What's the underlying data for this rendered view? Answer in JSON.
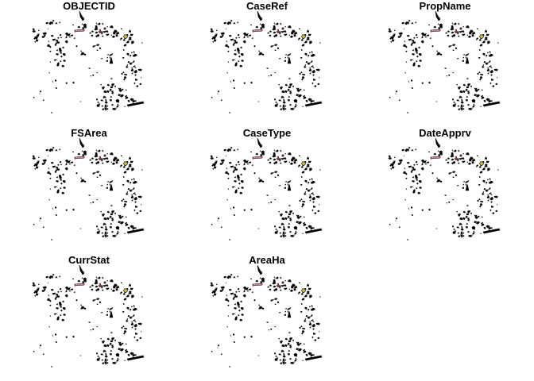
{
  "panels": [
    {
      "title": "OBJECTID"
    },
    {
      "title": "CaseRef"
    },
    {
      "title": "PropName"
    },
    {
      "title": "FSArea"
    },
    {
      "title": "CaseType"
    },
    {
      "title": "DateApprv"
    },
    {
      "title": "CurrStat"
    },
    {
      "title": "AreaHa"
    }
  ],
  "colors": {
    "feature_fill": "#000000",
    "accent_red": "#c0392b",
    "accent_yellow": "#b5b83a",
    "accent_pink": "#d98aa0"
  }
}
